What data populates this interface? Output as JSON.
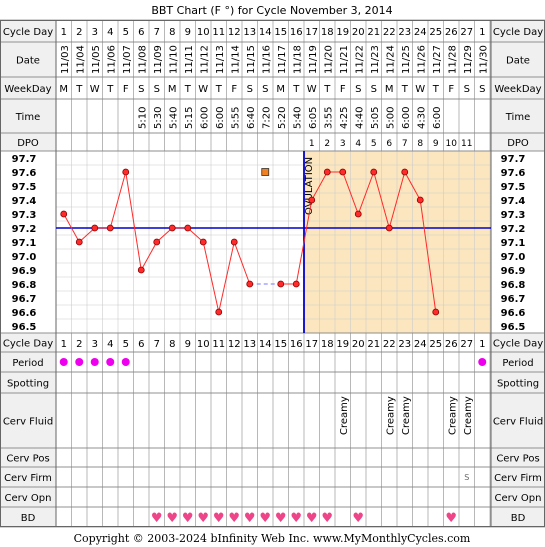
{
  "title": "BBT Chart (F °) for Cycle November 3, 2014",
  "copyright": "Copyright © 2003-2024 bInfinity Web Inc.    www.MyMonthlyCycles.com",
  "row_labels": {
    "cycle_day": "Cycle Day",
    "date": "Date",
    "weekday": "WeekDay",
    "time": "Time",
    "dpo": "DPO",
    "period": "Period",
    "spotting": "Spotting",
    "cerv_fluid": "Cerv Fluid",
    "cerv_pos": "Cerv Pos",
    "cerv_firm": "Cerv Firm",
    "cerv_opn": "Cerv Opn",
    "bd": "BD"
  },
  "cycle_days": [
    "1",
    "2",
    "3",
    "4",
    "5",
    "6",
    "7",
    "8",
    "9",
    "10",
    "11",
    "12",
    "13",
    "14",
    "15",
    "16",
    "17",
    "18",
    "19",
    "20",
    "21",
    "22",
    "23",
    "24",
    "25",
    "26",
    "27",
    "1"
  ],
  "dates": [
    "11/03",
    "11/04",
    "11/05",
    "11/06",
    "11/07",
    "11/08",
    "11/09",
    "11/10",
    "11/11",
    "11/12",
    "11/13",
    "11/14",
    "11/15",
    "11/16",
    "11/17",
    "11/18",
    "11/19",
    "11/20",
    "11/21",
    "11/22",
    "11/23",
    "11/24",
    "11/25",
    "11/26",
    "11/27",
    "11/28",
    "11/29",
    "11/30"
  ],
  "weekdays": [
    "M",
    "T",
    "W",
    "T",
    "F",
    "S",
    "S",
    "M",
    "T",
    "W",
    "T",
    "F",
    "S",
    "S",
    "M",
    "T",
    "W",
    "T",
    "F",
    "S",
    "S",
    "M",
    "T",
    "W",
    "T",
    "F",
    "S",
    "S"
  ],
  "times": [
    "",
    "",
    "",
    "",
    "",
    "5:10",
    "5:30",
    "5:40",
    "5:15",
    "6:00",
    "6:00",
    "5:55",
    "6:40",
    "7:20",
    "5:20",
    "5:40",
    "6:05",
    "3:55",
    "4:25",
    "4:40",
    "5:05",
    "5:00",
    "6:00",
    "4:30",
    "6:00",
    "",
    "",
    ""
  ],
  "dpo": [
    "",
    "",
    "",
    "",
    "",
    "",
    "",
    "",
    "",
    "",
    "",
    "",
    "",
    "",
    "",
    "",
    "1",
    "2",
    "3",
    "4",
    "5",
    "6",
    "7",
    "8",
    "9",
    "10",
    "11",
    ""
  ],
  "period": [
    1,
    1,
    1,
    1,
    1,
    0,
    0,
    0,
    0,
    0,
    0,
    0,
    0,
    0,
    0,
    0,
    0,
    0,
    0,
    0,
    0,
    0,
    0,
    0,
    0,
    0,
    0,
    1
  ],
  "cerv_fluid": [
    "",
    "",
    "",
    "",
    "",
    "",
    "",
    "",
    "",
    "",
    "",
    "",
    "",
    "",
    "",
    "",
    "",
    "",
    "Creamy",
    "",
    "",
    "Creamy",
    "Creamy",
    "",
    "",
    "Creamy",
    "Creamy",
    ""
  ],
  "cerv_firm": [
    "",
    "",
    "",
    "",
    "",
    "",
    "",
    "",
    "",
    "",
    "",
    "",
    "",
    "",
    "",
    "",
    "",
    "",
    "",
    "",
    "",
    "",
    "",
    "",
    "",
    "",
    "S",
    ""
  ],
  "bd": [
    0,
    0,
    0,
    0,
    0,
    0,
    1,
    1,
    1,
    1,
    1,
    1,
    1,
    1,
    1,
    1,
    1,
    1,
    0,
    1,
    0,
    0,
    0,
    0,
    0,
    1,
    0,
    0
  ],
  "heart_glyph": "♥",
  "ovulation_label": "OVULATION",
  "colors": {
    "period": "#ee00ee",
    "heart": "#ee4488",
    "line": "#ff2a2a",
    "coverline": "#0000cc",
    "luteal_bg": "#fce6bf",
    "header_bg": "#f0f0f0",
    "grid": "#cccccc",
    "dash": "#7777ff",
    "marker_square": "#f08020"
  },
  "chart_data": {
    "type": "line",
    "title": "BBT Chart (F °) for Cycle November 3, 2014",
    "x": [
      1,
      2,
      3,
      4,
      5,
      6,
      7,
      8,
      9,
      10,
      11,
      12,
      13,
      14,
      15,
      16,
      17,
      18,
      19,
      20,
      21,
      22,
      23,
      24,
      25,
      26,
      27,
      28
    ],
    "temps": [
      97.3,
      97.1,
      97.2,
      97.2,
      97.6,
      96.9,
      97.1,
      97.2,
      97.2,
      97.1,
      96.6,
      97.1,
      96.8,
      null,
      96.8,
      96.8,
      97.4,
      97.6,
      97.6,
      97.3,
      97.6,
      97.2,
      97.6,
      97.4,
      96.6,
      null,
      null,
      null
    ],
    "connected_segments": [
      [
        1,
        13
      ],
      [
        15,
        25
      ]
    ],
    "dashed_segments": [
      [
        13,
        15
      ]
    ],
    "ylim": [
      96.5,
      97.7
    ],
    "y_ticks": [
      "97.7",
      "97.6",
      "97.5",
      "97.4",
      "97.3",
      "97.2",
      "97.1",
      "97.0",
      "96.9",
      "96.8",
      "96.7",
      "96.6",
      "96.5"
    ],
    "coverline": 97.2,
    "ovulation_day": 16,
    "square_marker": {
      "day": 14,
      "value": 97.6
    }
  }
}
